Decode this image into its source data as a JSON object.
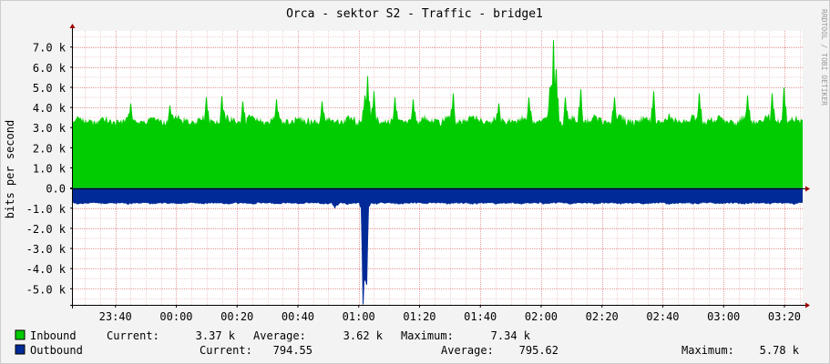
{
  "chart_data": {
    "type": "area",
    "title": "Orca - sektor S2 - Traffic - bridge1",
    "ylabel": "bits per second",
    "watermark": "RRDTOOL / TOBI OETIKER",
    "ylim": [
      -5800,
      7800
    ],
    "y_ticks": [
      7000,
      6000,
      5000,
      4000,
      3000,
      2000,
      1000,
      0,
      -1000,
      -2000,
      -3000,
      -4000,
      -5000
    ],
    "y_tick_labels": [
      "7.0 k",
      "6.0 k",
      "5.0 k",
      "4.0 k",
      "3.0 k",
      "2.0 k",
      "1.0 k",
      "0.0",
      "-1.0 k",
      "-2.0 k",
      "-3.0 k",
      "-4.0 k",
      "-5.0 k"
    ],
    "x_start": "23:26",
    "x_end": "03:26",
    "x_ticks": [
      "23:40",
      "00:00",
      "00:20",
      "00:40",
      "01:00",
      "01:20",
      "01:40",
      "02:00",
      "02:20",
      "02:40",
      "03:00",
      "03:20"
    ],
    "grid": true,
    "series": [
      {
        "name": "Inbound",
        "color": "#00cc00",
        "direction": "up",
        "baseline": 3300,
        "noise": 250,
        "x": [
          "23:45",
          "23:58",
          "00:10",
          "00:15",
          "00:22",
          "00:33",
          "00:48",
          "01:02",
          "01:03",
          "01:05",
          "01:12",
          "01:18",
          "01:31",
          "01:46",
          "01:56",
          "02:03",
          "02:04",
          "02:05",
          "02:08",
          "02:13",
          "02:24",
          "02:37",
          "02:52",
          "03:08",
          "03:16",
          "03:20"
        ],
        "values": [
          4200,
          4100,
          4500,
          4550,
          4300,
          4400,
          4300,
          4600,
          5550,
          4800,
          4500,
          4400,
          4700,
          4200,
          4500,
          5000,
          7340,
          5900,
          4500,
          4900,
          4500,
          4800,
          4700,
          4600,
          4700,
          5000
        ],
        "current": "3.37 k",
        "average": "3.62 k",
        "maximum": "7.34 k"
      },
      {
        "name": "Outbound",
        "color": "#002a97",
        "direction": "down",
        "baseline": 750,
        "noise": 50,
        "x": [
          "00:52",
          "00:53",
          "01:01",
          "01:01:30",
          "01:02",
          "01:02:30",
          "01:03"
        ],
        "values": [
          1000,
          870,
          1200,
          5780,
          4600,
          4800,
          1100
        ],
        "current": "794.55",
        "average": "795.62",
        "maximum": "5.78 k"
      }
    ]
  },
  "legend": {
    "inbound": {
      "name": "Inbound",
      "current_label": "Current:",
      "current": "3.37 k",
      "average_label": "Average:",
      "average": "3.62 k",
      "maximum_label": "Maximum:",
      "maximum": "7.34 k"
    },
    "outbound": {
      "name": "Outbound",
      "current_label": "Current:",
      "current": "794.55",
      "average_label": "Average:",
      "average": "795.62",
      "maximum_label": "Maximum:",
      "maximum": "5.78 k"
    }
  }
}
